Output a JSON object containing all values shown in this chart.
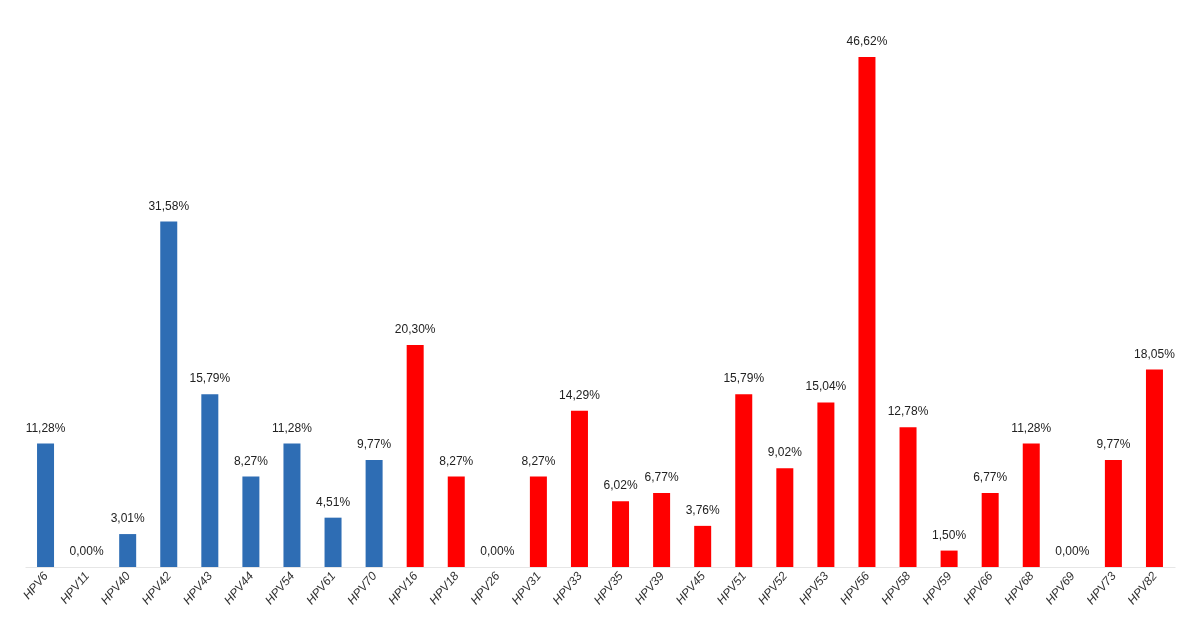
{
  "chart_data": {
    "type": "bar",
    "categories": [
      "HPV6",
      "HPV11",
      "HPV40",
      "HPV42",
      "HPV43",
      "HPV44",
      "HPV54",
      "HPV61",
      "HPV70",
      "HPV16",
      "HPV18",
      "HPV26",
      "HPV31",
      "HPV33",
      "HPV35",
      "HPV39",
      "HPV45",
      "HPV51",
      "HPV52",
      "HPV53",
      "HPV56",
      "HPV58",
      "HPV59",
      "HPV66",
      "HPV68",
      "HPV69",
      "HPV73",
      "HPV82"
    ],
    "values": [
      11.28,
      0.0,
      3.01,
      31.58,
      15.79,
      8.27,
      11.28,
      4.51,
      9.77,
      20.3,
      8.27,
      0.0,
      8.27,
      14.29,
      6.02,
      6.77,
      3.76,
      15.79,
      9.02,
      15.04,
      46.62,
      12.78,
      1.5,
      6.77,
      11.28,
      0.0,
      9.77,
      18.05
    ],
    "value_labels": [
      "11,28%",
      "0,00%",
      "3,01%",
      "31,58%",
      "15,79%",
      "8,27%",
      "11,28%",
      "4,51%",
      "9,77%",
      "20,30%",
      "8,27%",
      "0,00%",
      "8,27%",
      "14,29%",
      "6,02%",
      "6,77%",
      "3,76%",
      "15,79%",
      "9,02%",
      "15,04%",
      "46,62%",
      "12,78%",
      "1,50%",
      "6,77%",
      "11,28%",
      "0,00%",
      "9,77%",
      "18,05%"
    ],
    "colors": [
      "#2e6db4",
      "#2e6db4",
      "#2e6db4",
      "#2e6db4",
      "#2e6db4",
      "#2e6db4",
      "#2e6db4",
      "#2e6db4",
      "#2e6db4",
      "#ff0000",
      "#ff0000",
      "#ff0000",
      "#ff0000",
      "#ff0000",
      "#ff0000",
      "#ff0000",
      "#ff0000",
      "#ff0000",
      "#ff0000",
      "#ff0000",
      "#ff0000",
      "#ff0000",
      "#ff0000",
      "#ff0000",
      "#ff0000",
      "#ff0000",
      "#ff0000",
      "#ff0000"
    ]
  }
}
